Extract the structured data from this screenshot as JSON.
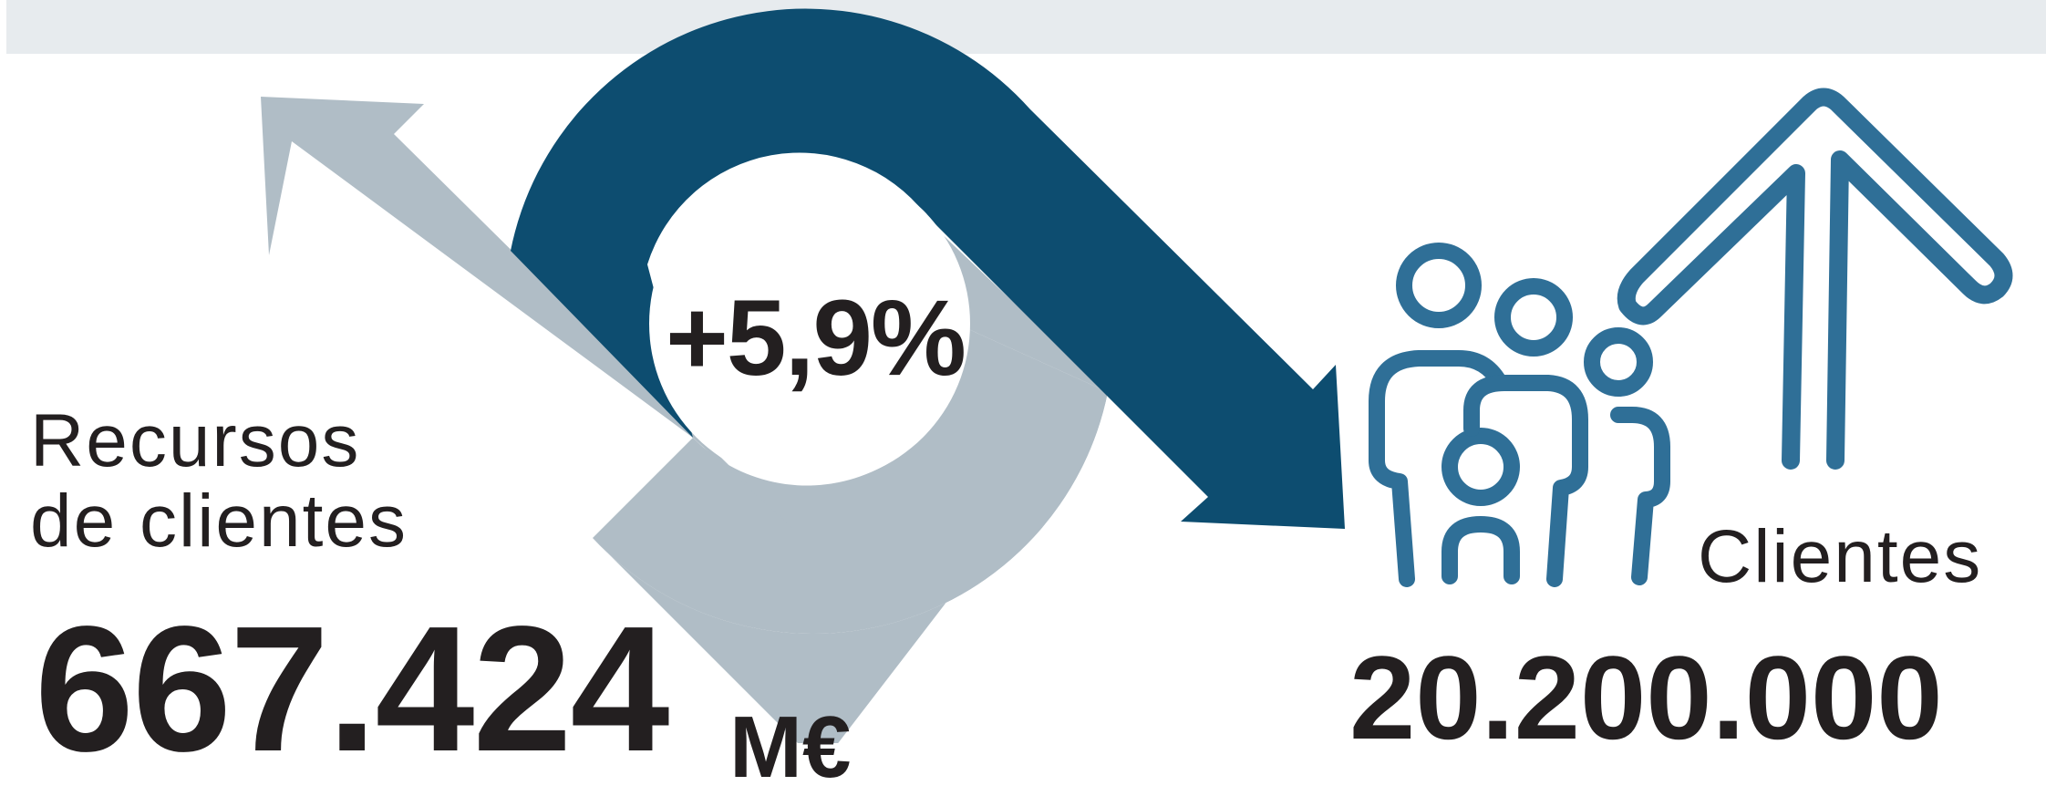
{
  "left_metric": {
    "label_line1": "Recursos",
    "label_line2": "de clientes",
    "value": "667.424",
    "unit": "M€"
  },
  "center": {
    "change": "+5,9%"
  },
  "right_metric": {
    "label": "Clientes",
    "value": "20.200.000"
  },
  "colors": {
    "dark_blue": "#0d4d70",
    "light_gray_blue": "#b0bdc6",
    "icon_blue": "#2f6f97",
    "text": "#231f20",
    "top_bar": "#e7ebee"
  },
  "icons": [
    "cycle-arrows-icon",
    "family-icon",
    "up-arrow-icon"
  ]
}
